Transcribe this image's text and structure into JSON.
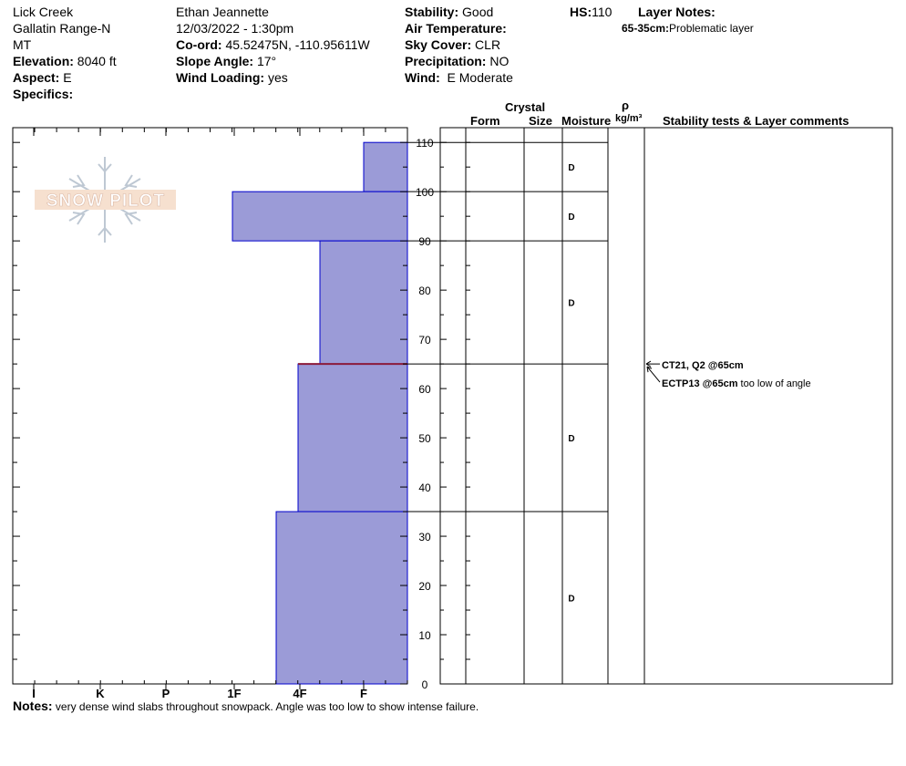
{
  "header": {
    "location": "Lick Creek",
    "range": "Gallatin Range-N",
    "state": "MT",
    "elevation_label": "Elevation:",
    "elevation": "8040 ft",
    "aspect_label": "Aspect:",
    "aspect": "E",
    "specifics_label": "Specifics:",
    "observer": "Ethan Jeannette",
    "datetime": "12/03/2022 - 1:30pm",
    "coord_label": "Co-ord:",
    "coord": "45.52475N, -110.95611W",
    "slope_label": "Slope Angle:",
    "slope": "17°",
    "wind_loading_label": "Wind Loading:",
    "wind_loading": "yes",
    "stability_label": "Stability:",
    "stability": "Good",
    "air_temp_label": "Air Temperature:",
    "sky_label": "Sky Cover:",
    "sky": "CLR",
    "precip_label": "Precipitation:",
    "precip": "NO",
    "wind_label": "Wind:",
    "wind": "E Moderate",
    "hs_label": "HS:",
    "hs": "110",
    "layer_notes_label": "Layer Notes:",
    "layer_note_range": "65-35cm:",
    "layer_note_text": "Problematic layer"
  },
  "logo_text": "SNOW PILOT",
  "columns": {
    "crystal": "Crystal",
    "form": "Form",
    "size": "Size",
    "moisture": "Moisture",
    "rho": "ρ",
    "density_unit": "kg/m³",
    "stability_comments": "Stability tests & Layer comments"
  },
  "tests": [
    {
      "bold": "CT21, Q2 @65cm",
      "rest": ""
    },
    {
      "bold": "ECTP13 @65cm",
      "rest": " too low of angle"
    }
  ],
  "notes_label": "Notes:",
  "notes": "very dense wind slabs throughout snowpack. Angle was too low to show intense failure.",
  "chart_data": {
    "type": "bar",
    "orientation": "horizontal-step",
    "hardness_scale": [
      "I",
      "K",
      "P",
      "1F",
      "4F",
      "F"
    ],
    "y_axis_ticks": [
      0,
      10,
      20,
      30,
      40,
      50,
      60,
      70,
      80,
      90,
      100,
      110
    ],
    "ylim": [
      0,
      113
    ],
    "layers": [
      {
        "top": 110,
        "bottom": 100,
        "hardness": "F",
        "moisture": "D"
      },
      {
        "top": 100,
        "bottom": 90,
        "hardness": "1F",
        "moisture": "D"
      },
      {
        "top": 90,
        "bottom": 65,
        "hardness": "4F-F",
        "moisture": "D"
      },
      {
        "top": 65,
        "bottom": 35,
        "hardness": "4F",
        "moisture": "D"
      },
      {
        "top": 35,
        "bottom": 0,
        "hardness": "4F+",
        "moisture": "D"
      }
    ],
    "weak_layer_cm": 65,
    "colors": {
      "fill": "#9b9bd7",
      "stroke": "#0000cc",
      "weak_layer": "#8b1a3a"
    }
  }
}
